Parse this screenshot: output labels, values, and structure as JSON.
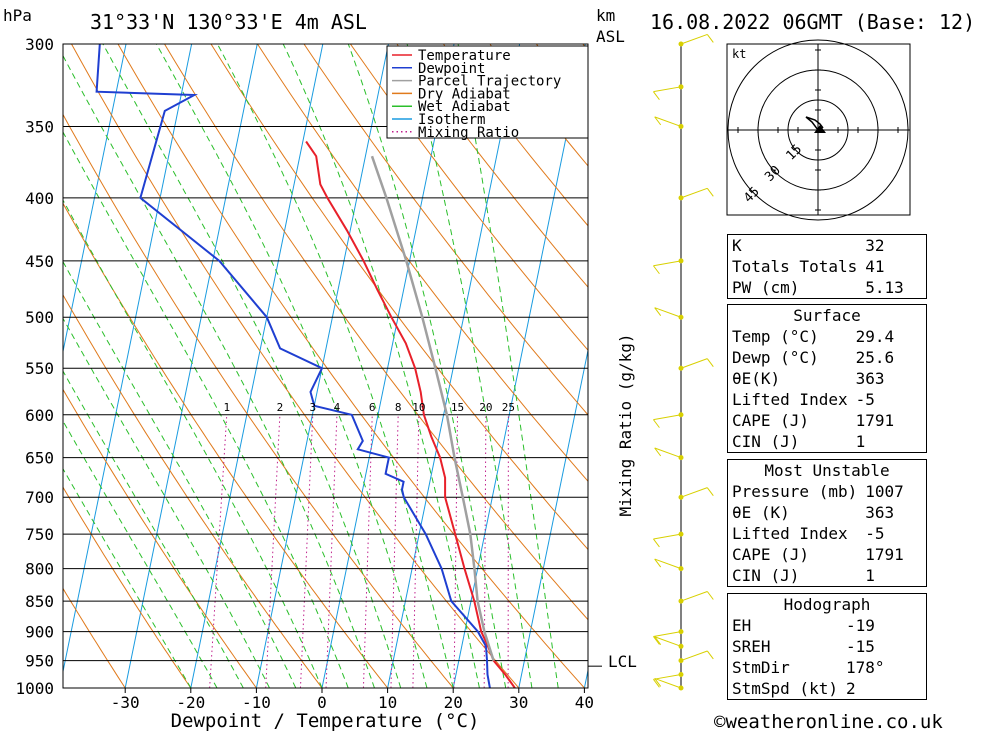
{
  "header": {
    "location": "31°33'N  130°33'E  4m  ASL",
    "unit_left": "hPa",
    "unit_km": "km",
    "unit_asl": "ASL",
    "datetime": "16.08.2022  06GMT  (Base: 12)"
  },
  "chart_data": {
    "type": "line",
    "subtype": "skew-T log-p diagram",
    "xlabel": "Dewpoint / Temperature (°C)",
    "y_right_label": "Mixing Ratio (g/kg)",
    "x_ticks": [
      -30,
      -20,
      -10,
      0,
      10,
      20,
      30,
      40
    ],
    "pressure_levels": [
      300,
      350,
      400,
      450,
      500,
      550,
      600,
      650,
      700,
      750,
      800,
      850,
      900,
      950,
      1000
    ],
    "legend": [
      "Temperature",
      "Dewpoint",
      "Parcel Trajectory",
      "Dry Adiabat",
      "Wet Adiabat",
      "Isotherm",
      "Mixing Ratio"
    ],
    "legend_position": "top-center",
    "mixing_ratio_labels": [
      1,
      2,
      3,
      4,
      6,
      8,
      10,
      15,
      20,
      25
    ],
    "lcl_label": "LCL",
    "lcl_pressure": 960,
    "colors": {
      "temperature": "#e8202a",
      "dewpoint": "#1f3fd1",
      "parcel": "#a0a0a0",
      "dry_adiabat": "#e07a1c",
      "wet_adiabat": "#2bbf2b",
      "isotherm": "#1a9be0",
      "mixing_ratio": "#c0208c",
      "wind": "#d8d000"
    },
    "series": [
      {
        "name": "Temperature",
        "points": [
          [
            1000,
            29.4
          ],
          [
            975,
            27.5
          ],
          [
            950,
            25.3
          ],
          [
            925,
            24.0
          ],
          [
            900,
            22.5
          ],
          [
            850,
            20.5
          ],
          [
            800,
            18.0
          ],
          [
            750,
            15.5
          ],
          [
            700,
            12.8
          ],
          [
            675,
            12.2
          ],
          [
            650,
            10.8
          ],
          [
            625,
            8.8
          ],
          [
            600,
            7.0
          ],
          [
            575,
            5.8
          ],
          [
            550,
            4.2
          ],
          [
            525,
            2.0
          ],
          [
            500,
            -1.0
          ],
          [
            475,
            -4.0
          ],
          [
            450,
            -7.0
          ],
          [
            425,
            -10.5
          ],
          [
            400,
            -14.5
          ],
          [
            390,
            -16.0
          ],
          [
            370,
            -17.5
          ],
          [
            360,
            -19.5
          ]
        ]
      },
      {
        "name": "Dewpoint",
        "points": [
          [
            1000,
            25.6
          ],
          [
            975,
            24.8
          ],
          [
            950,
            24.3
          ],
          [
            925,
            23.7
          ],
          [
            900,
            22.0
          ],
          [
            850,
            17.0
          ],
          [
            800,
            14.5
          ],
          [
            750,
            11.0
          ],
          [
            700,
            6.5
          ],
          [
            690,
            6.0
          ],
          [
            680,
            6.0
          ],
          [
            670,
            3.0
          ],
          [
            660,
            3.0
          ],
          [
            650,
            3.0
          ],
          [
            640,
            -2.0
          ],
          [
            630,
            -1.5
          ],
          [
            600,
            -4.0
          ],
          [
            590,
            -10.0
          ],
          [
            575,
            -11.0
          ],
          [
            550,
            -10.0
          ],
          [
            530,
            -17.0
          ],
          [
            500,
            -20.0
          ],
          [
            450,
            -29.0
          ],
          [
            400,
            -43.0
          ],
          [
            340,
            -42.0
          ],
          [
            330,
            -38.0
          ],
          [
            328,
            -53.0
          ],
          [
            300,
            -54.0
          ]
        ]
      },
      {
        "name": "Parcel Trajectory",
        "points": [
          [
            950,
            25.3
          ],
          [
            900,
            23.0
          ],
          [
            850,
            21.0
          ],
          [
            800,
            19.5
          ],
          [
            750,
            17.8
          ],
          [
            700,
            15.5
          ],
          [
            650,
            13.0
          ],
          [
            600,
            10.5
          ],
          [
            550,
            7.3
          ],
          [
            500,
            3.7
          ],
          [
            450,
            -0.5
          ],
          [
            400,
            -5.5
          ],
          [
            370,
            -9.0
          ]
        ]
      }
    ],
    "wind_barbs_at_pressure": [
      1000,
      975,
      950,
      925,
      900,
      850,
      800,
      750,
      700,
      650,
      600,
      550,
      500,
      450,
      400,
      350,
      325,
      300
    ]
  },
  "hodograph": {
    "unit": "kt",
    "ring_labels": [
      "15",
      "30",
      "45"
    ]
  },
  "indices": {
    "rows": [
      {
        "label": "K",
        "value": "32"
      },
      {
        "label": "Totals Totals",
        "value": "41"
      },
      {
        "label": "PW (cm)",
        "value": "5.13"
      }
    ]
  },
  "surface": {
    "title": "Surface",
    "rows": [
      {
        "label": "Temp (°C)",
        "value": "29.4"
      },
      {
        "label": "Dewp (°C)",
        "value": "25.6"
      },
      {
        "label": "θE(K)",
        "value": "363"
      },
      {
        "label": "Lifted Index",
        "value": "-5"
      },
      {
        "label": "CAPE (J)",
        "value": "1791"
      },
      {
        "label": "CIN (J)",
        "value": "1"
      }
    ]
  },
  "most_unstable": {
    "title": "Most Unstable",
    "rows": [
      {
        "label": "Pressure (mb)",
        "value": "1007"
      },
      {
        "label": "θE (K)",
        "value": "363"
      },
      {
        "label": "Lifted Index",
        "value": "-5"
      },
      {
        "label": "CAPE (J)",
        "value": "1791"
      },
      {
        "label": "CIN (J)",
        "value": "1"
      }
    ]
  },
  "hodograph_table": {
    "title": "Hodograph",
    "rows": [
      {
        "label": "EH",
        "value": "-19"
      },
      {
        "label": "SREH",
        "value": "-15"
      },
      {
        "label": "StmDir",
        "value": "178°"
      },
      {
        "label": "StmSpd (kt)",
        "value": "2"
      }
    ]
  },
  "footer": {
    "copyright": "©weatheronline.co.uk"
  }
}
